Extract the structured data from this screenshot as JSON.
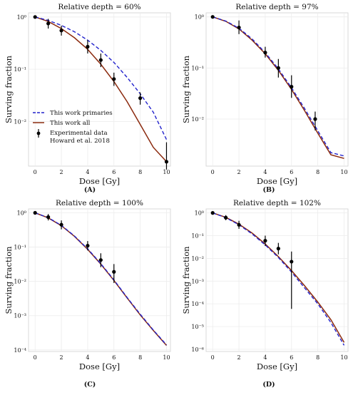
{
  "legend": {
    "entries": [
      {
        "key": "primaries",
        "label": "This work primaries",
        "color": "#2222cc",
        "dash": true
      },
      {
        "key": "all",
        "label": "This work all",
        "color": "#8b2a0e",
        "dash": false
      },
      {
        "key": "experimental",
        "label": "Experimental data",
        "label2": "Howard et al. 2018",
        "color": "#000000",
        "marker": true
      }
    ]
  },
  "chart_data": [
    {
      "type": "line",
      "panel": "(A)",
      "title": "Relative depth = 60%",
      "xlabel": "Dose [Gy]",
      "ylabel": "Surving fraction",
      "yscale": "log",
      "xlim": [
        -0.5,
        10.3
      ],
      "ylim": [
        0.0014,
        1.2
      ],
      "xticks": [
        0,
        2,
        4,
        6,
        8,
        10
      ],
      "yticks": [
        {
          "v": 1,
          "label": "10⁰"
        },
        {
          "v": 0.1,
          "label": "10⁻¹"
        },
        {
          "v": 0.01,
          "label": "10⁻²"
        }
      ],
      "grid": true,
      "legend_position": "bottom-left",
      "series": [
        {
          "key": "primaries",
          "x": [
            0,
            1,
            2,
            3,
            4,
            5,
            6,
            7,
            8,
            9,
            10
          ],
          "y": [
            1.0,
            0.86,
            0.69,
            0.52,
            0.36,
            0.23,
            0.135,
            0.07,
            0.034,
            0.015,
            0.0045
          ]
        },
        {
          "key": "all",
          "x": [
            0,
            1,
            2,
            3,
            4,
            5,
            6,
            7,
            8,
            9,
            10
          ],
          "y": [
            1.0,
            0.82,
            0.6,
            0.4,
            0.24,
            0.125,
            0.058,
            0.024,
            0.0088,
            0.0032,
            0.0017
          ]
        }
      ],
      "experimental": [
        {
          "x": 0,
          "y": 1.0,
          "lo": 0.97,
          "hi": 1.03
        },
        {
          "x": 1,
          "y": 0.75,
          "lo": 0.6,
          "hi": 0.92
        },
        {
          "x": 2,
          "y": 0.55,
          "lo": 0.44,
          "hi": 0.68
        },
        {
          "x": 4,
          "y": 0.27,
          "lo": 0.2,
          "hi": 0.36
        },
        {
          "x": 5,
          "y": 0.15,
          "lo": 0.11,
          "hi": 0.2
        },
        {
          "x": 6,
          "y": 0.065,
          "lo": 0.048,
          "hi": 0.086
        },
        {
          "x": 8,
          "y": 0.028,
          "lo": 0.021,
          "hi": 0.036
        },
        {
          "x": 10,
          "y": 0.0017,
          "lo": 0.0012,
          "hi": 0.004
        }
      ]
    },
    {
      "type": "line",
      "panel": "(B)",
      "title": "Relative depth = 97%",
      "xlabel": "Dose [Gy]",
      "ylabel": "Surving fraction",
      "yscale": "log",
      "xlim": [
        -0.5,
        10.3
      ],
      "ylim": [
        0.0012,
        1.2
      ],
      "xticks": [
        0,
        2,
        4,
        6,
        8,
        10
      ],
      "yticks": [
        {
          "v": 1,
          "label": "10⁰"
        },
        {
          "v": 0.1,
          "label": "10⁻¹"
        },
        {
          "v": 0.01,
          "label": "10⁻²"
        }
      ],
      "grid": true,
      "series": [
        {
          "key": "primaries",
          "x": [
            0,
            1,
            2,
            3,
            4,
            5,
            6,
            7,
            8,
            9,
            10
          ],
          "y": [
            1.0,
            0.83,
            0.6,
            0.37,
            0.2,
            0.096,
            0.041,
            0.016,
            0.0059,
            0.0022,
            0.0019
          ]
        },
        {
          "key": "all",
          "x": [
            0,
            1,
            2,
            3,
            4,
            5,
            6,
            7,
            8,
            9,
            10
          ],
          "y": [
            1.0,
            0.82,
            0.58,
            0.35,
            0.19,
            0.09,
            0.038,
            0.0145,
            0.0053,
            0.002,
            0.0017
          ]
        }
      ],
      "experimental": [
        {
          "x": 0,
          "y": 1.0,
          "lo": 0.97,
          "hi": 1.03
        },
        {
          "x": 2,
          "y": 0.62,
          "lo": 0.46,
          "hi": 0.85
        },
        {
          "x": 4,
          "y": 0.2,
          "lo": 0.16,
          "hi": 0.26
        },
        {
          "x": 5,
          "y": 0.1,
          "lo": 0.065,
          "hi": 0.15
        },
        {
          "x": 6,
          "y": 0.043,
          "lo": 0.026,
          "hi": 0.072
        },
        {
          "x": 7.8,
          "y": 0.01,
          "lo": 0.006,
          "hi": 0.014
        }
      ]
    },
    {
      "type": "line",
      "panel": "(C)",
      "title": "Relative depth = 100%",
      "xlabel": "Dose [Gy]",
      "ylabel": "Surving fraction",
      "yscale": "log",
      "xlim": [
        -0.5,
        10.3
      ],
      "ylim": [
        9e-05,
        1.3
      ],
      "xticks": [
        0,
        2,
        4,
        6,
        8,
        10
      ],
      "yticks": [
        {
          "v": 1,
          "label": "10⁰"
        },
        {
          "v": 0.1,
          "label": "10⁻¹"
        },
        {
          "v": 0.01,
          "label": "10⁻²"
        },
        {
          "v": 0.001,
          "label": "10⁻³"
        },
        {
          "v": 0.0001,
          "label": "10⁻⁴"
        }
      ],
      "grid": true,
      "series": [
        {
          "key": "primaries",
          "x": [
            0,
            1,
            2,
            3,
            4,
            5,
            6,
            7,
            8,
            9,
            10
          ],
          "y": [
            1.0,
            0.72,
            0.43,
            0.21,
            0.089,
            0.033,
            0.011,
            0.0034,
            0.0011,
            0.00038,
            0.00014
          ]
        },
        {
          "key": "all",
          "x": [
            0,
            1,
            2,
            3,
            4,
            5,
            6,
            7,
            8,
            9,
            10
          ],
          "y": [
            1.0,
            0.71,
            0.42,
            0.205,
            0.086,
            0.032,
            0.0106,
            0.0033,
            0.00105,
            0.00037,
            0.000135
          ]
        }
      ],
      "experimental": [
        {
          "x": 0,
          "y": 1.0,
          "lo": 0.96,
          "hi": 1.04
        },
        {
          "x": 1,
          "y": 0.75,
          "lo": 0.6,
          "hi": 0.92
        },
        {
          "x": 2,
          "y": 0.45,
          "lo": 0.33,
          "hi": 0.6
        },
        {
          "x": 4,
          "y": 0.11,
          "lo": 0.08,
          "hi": 0.15
        },
        {
          "x": 5,
          "y": 0.042,
          "lo": 0.026,
          "hi": 0.066
        },
        {
          "x": 6,
          "y": 0.019,
          "lo": 0.009,
          "hi": 0.032
        }
      ]
    },
    {
      "type": "line",
      "panel": "(D)",
      "title": "Relative depth = 102%",
      "xlabel": "Dose [Gy]",
      "ylabel": "Surving fraction",
      "yscale": "log",
      "xlim": [
        -0.5,
        10.3
      ],
      "ylim": [
        8e-07,
        1.5
      ],
      "xticks": [
        0,
        2,
        4,
        6,
        8,
        10
      ],
      "yticks": [
        {
          "v": 1,
          "label": "10⁰"
        },
        {
          "v": 0.1,
          "label": "10⁻¹"
        },
        {
          "v": 0.01,
          "label": "10⁻²"
        },
        {
          "v": 0.001,
          "label": "10⁻³"
        },
        {
          "v": 0.0001,
          "label": "10⁻⁴"
        },
        {
          "v": 1e-05,
          "label": "10⁻⁵"
        },
        {
          "v": 1e-06,
          "label": "10⁻⁶"
        }
      ],
      "grid": true,
      "series": [
        {
          "key": "primaries",
          "x": [
            0,
            1,
            2,
            3,
            4,
            5,
            6,
            7,
            8,
            9,
            10
          ],
          "y": [
            1.0,
            0.62,
            0.3,
            0.12,
            0.039,
            0.011,
            0.0025,
            0.0005,
            0.0001,
            1.5e-05,
            1.5e-06
          ]
        },
        {
          "key": "all",
          "x": [
            0,
            1,
            2,
            3,
            4,
            5,
            6,
            7,
            8,
            9,
            10
          ],
          "y": [
            1.0,
            0.64,
            0.32,
            0.13,
            0.043,
            0.012,
            0.0029,
            0.00062,
            0.00012,
            2e-05,
            2e-06
          ]
        }
      ],
      "experimental": [
        {
          "x": 0,
          "y": 1.0,
          "lo": 0.94,
          "hi": 1.06
        },
        {
          "x": 1,
          "y": 0.62,
          "lo": 0.48,
          "hi": 0.8
        },
        {
          "x": 2,
          "y": 0.3,
          "lo": 0.2,
          "hi": 0.45
        },
        {
          "x": 4,
          "y": 0.06,
          "lo": 0.035,
          "hi": 0.1
        },
        {
          "x": 5,
          "y": 0.027,
          "lo": 0.015,
          "hi": 0.048
        },
        {
          "x": 6,
          "y": 0.0072,
          "lo": 6e-05,
          "hi": 0.02
        }
      ]
    }
  ]
}
